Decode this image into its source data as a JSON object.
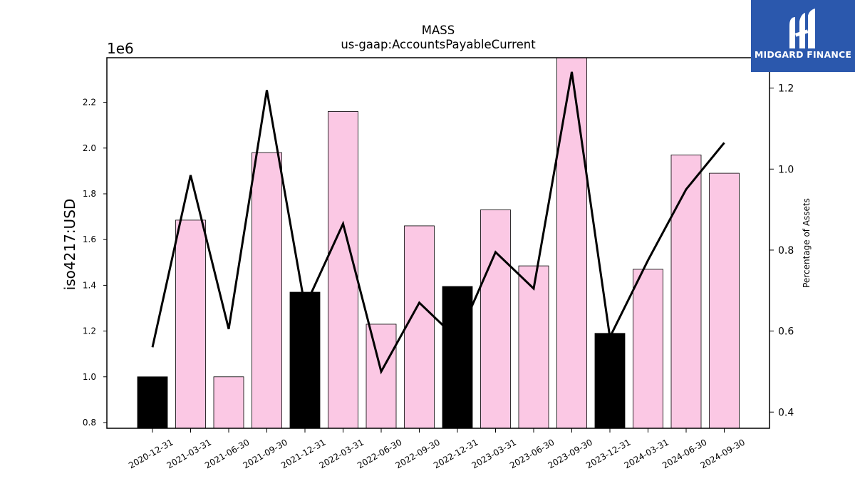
{
  "chart_data": {
    "type": "bar",
    "title": "MASS",
    "subtitle": "us-gaap:AccountsPayableCurrent",
    "ylabel": "iso4217:USD",
    "y_offset_label": "1e6",
    "y2label": "Percentage of Assets",
    "categories": [
      "2020-12-31",
      "2021-03-31",
      "2021-06-30",
      "2021-09-30",
      "2021-12-31",
      "2022-03-31",
      "2022-06-30",
      "2022-09-30",
      "2022-12-31",
      "2023-03-31",
      "2023-06-30",
      "2023-09-30",
      "2023-12-31",
      "2024-03-31",
      "2024-06-30",
      "2024-09-30"
    ],
    "series": [
      {
        "values": [
          1.0,
          1.685,
          1.0,
          1.98,
          1.37,
          2.16,
          1.23,
          1.66,
          1.395,
          1.73,
          1.485,
          2.4,
          1.19,
          1.47,
          1.97,
          1.89
        ],
        "colors": [
          "#000000",
          "#fbc8e4",
          "#fbc8e4",
          "#fbc8e4",
          "#000000",
          "#fbc8e4",
          "#fbc8e4",
          "#fbc8e4",
          "#000000",
          "#fbc8e4",
          "#fbc8e4",
          "#fbc8e4",
          "#000000",
          "#fbc8e4",
          "#fbc8e4",
          "#fbc8e4"
        ],
        "axis": "left"
      },
      {
        "type": "line",
        "values": [
          0.56,
          0.985,
          0.605,
          1.195,
          0.66,
          0.865,
          0.5,
          0.67,
          0.58,
          0.795,
          0.705,
          1.24,
          0.585,
          0.775,
          0.95,
          1.065
        ],
        "color": "#000000",
        "axis": "right"
      }
    ],
    "ylim": [
      0.775,
      2.395
    ],
    "y2lim": [
      0.36,
      1.275
    ],
    "yticks": [
      "0.8",
      "1.0",
      "1.2",
      "1.4",
      "1.6",
      "1.8",
      "2.0",
      "2.2"
    ],
    "y2ticks": [
      "0.4",
      "0.6",
      "0.8",
      "1.0",
      "1.2"
    ],
    "grid": false,
    "legend": "none"
  },
  "logo": {
    "text": "MIDGARD FINANCE",
    "background": "#2b58ad"
  }
}
